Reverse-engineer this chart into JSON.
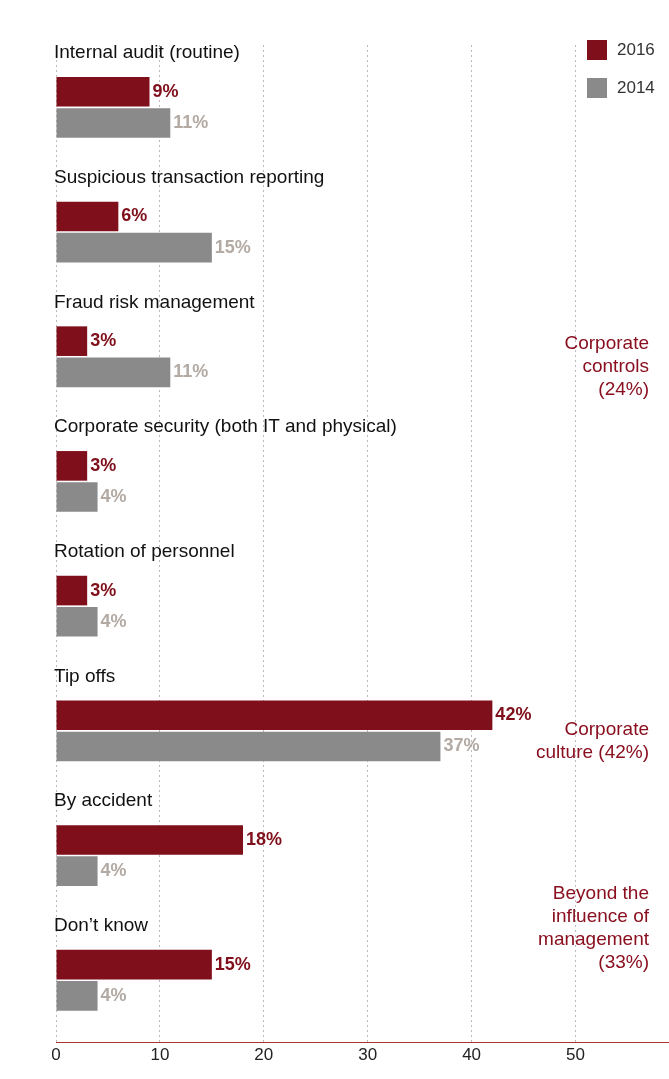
{
  "chart_data": {
    "type": "bar",
    "orientation": "horizontal",
    "categories": [
      "Internal audit (routine)",
      "Suspicious transaction reporting",
      "Fraud risk management",
      "Corporate security (both IT and physical)",
      "Rotation of personnel",
      "Tip offs",
      "By accident",
      "Don’t know"
    ],
    "series": [
      {
        "name": "2016",
        "color": "#7f0f1a",
        "values": [
          9,
          6,
          3,
          3,
          3,
          42,
          18,
          15
        ],
        "value_labels": [
          "9%",
          "6%",
          "3%",
          "3%",
          "3%",
          "42%",
          "18%",
          "15%"
        ]
      },
      {
        "name": "2014",
        "color": "#8a8a8a",
        "values": [
          11,
          15,
          11,
          4,
          4,
          37,
          4,
          4
        ],
        "value_labels": [
          "11%",
          "15%",
          "11%",
          "4%",
          "4%",
          "37%",
          "4%",
          "4%"
        ]
      }
    ],
    "xlim": [
      0,
      59
    ],
    "xticks": [
      0,
      10,
      20,
      30,
      40,
      50
    ],
    "grid": "x",
    "legend": "top right",
    "annotations": [
      "Corporate controls (24%)",
      "Corporate culture (42%)",
      "Beyond the influence of management (33%)"
    ]
  }
}
